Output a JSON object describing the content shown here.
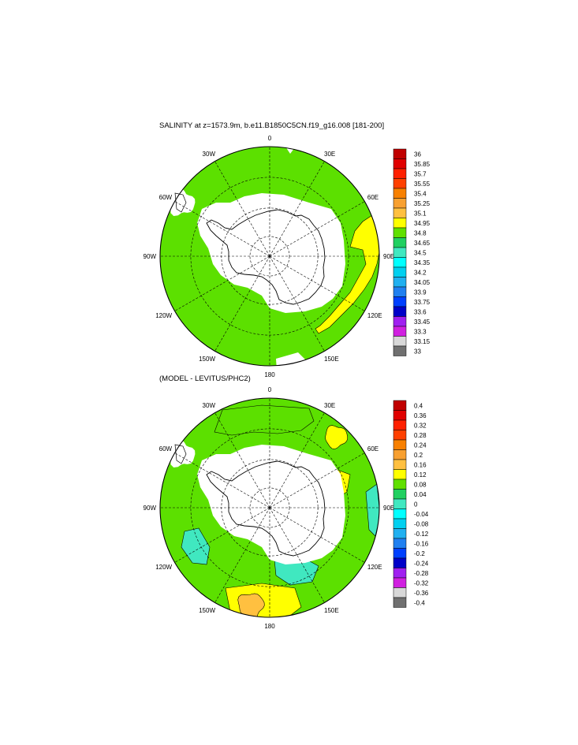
{
  "panels": [
    {
      "title": "SALINITY at z=1573.9m, b.e11.B1850C5CN.f19_g16.008 [181-200]",
      "lon_labels": [
        "0",
        "30E",
        "60E",
        "90E",
        "120E",
        "150E",
        "180",
        "150W",
        "120W",
        "90W",
        "60W",
        "30W"
      ],
      "colorbar": {
        "labels": [
          "36",
          "35.85",
          "35.7",
          "35.55",
          "35.4",
          "35.25",
          "35.1",
          "34.95",
          "34.8",
          "34.65",
          "34.5",
          "34.35",
          "34.2",
          "34.05",
          "33.9",
          "33.75",
          "33.6",
          "33.45",
          "33.3",
          "33.15",
          "33"
        ],
        "colors": [
          "#c00000",
          "#e00000",
          "#ff2000",
          "#ff4000",
          "#f88000",
          "#f8a030",
          "#ffc040",
          "#ffff00",
          "#60e000",
          "#20d060",
          "#40e8c0",
          "#00ffff",
          "#00d0f0",
          "#20b0f0",
          "#2080f0",
          "#0040ff",
          "#0000c8",
          "#a020f0",
          "#d020e0",
          "#d8d8d8",
          "#707070"
        ]
      },
      "map_colors": {
        "ocean": "#5ce000",
        "band": "#ffff00",
        "land": "#ffffff"
      }
    },
    {
      "title": "(MODEL - LEVITUS/PHC2)",
      "lon_labels": [
        "0",
        "30E",
        "60E",
        "90E",
        "120E",
        "150E",
        "180",
        "150W",
        "120W",
        "90W",
        "60W",
        "30W"
      ],
      "colorbar": {
        "labels": [
          "0.4",
          "0.36",
          "0.32",
          "0.28",
          "0.24",
          "0.2",
          "0.16",
          "0.12",
          "0.08",
          "0.04",
          "0",
          "-0.04",
          "-0.08",
          "-0.12",
          "-0.16",
          "-0.2",
          "-0.24",
          "-0.28",
          "-0.32",
          "-0.36",
          "-0.4"
        ],
        "colors": [
          "#c00000",
          "#e00000",
          "#ff2000",
          "#ff4000",
          "#f88000",
          "#f8a030",
          "#ffc040",
          "#ffff00",
          "#60e000",
          "#20d060",
          "#40e8c0",
          "#00ffff",
          "#00d0f0",
          "#20b0f0",
          "#2080f0",
          "#0040ff",
          "#0000c8",
          "#a020f0",
          "#d020e0",
          "#d8d8d8",
          "#707070"
        ]
      },
      "map_colors": {
        "ocean": "#5ce000",
        "cyan": "#40e8c0",
        "yellow": "#ffff00",
        "orange": "#ffc040",
        "land": "#ffffff"
      }
    }
  ]
}
